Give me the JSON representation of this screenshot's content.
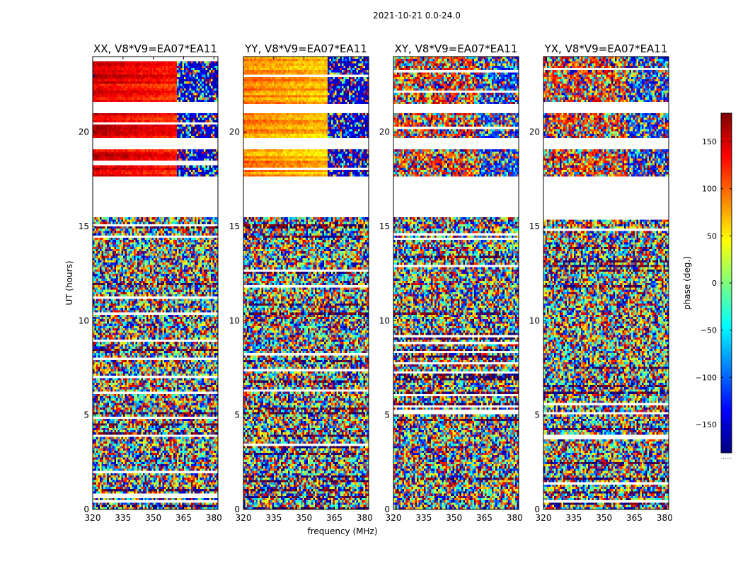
{
  "chart_data": {
    "type": "heatmap",
    "suptitle": "2021-10-21 0.0-24.0",
    "xlabel": "frequency (MHz)",
    "ylabel": "UT (hours)",
    "xlim": [
      320,
      382
    ],
    "ylim": [
      0,
      24
    ],
    "xticks": [
      320,
      335,
      350,
      365,
      380
    ],
    "yticks": [
      0,
      5,
      10,
      15,
      20
    ],
    "colorbar": {
      "label": "phase (deg.)",
      "range": [
        -180,
        180
      ],
      "ticks": [
        150,
        100,
        50,
        0,
        -50,
        -100,
        -150
      ],
      "tick_labels": [
        "150",
        "100",
        "50",
        "0",
        "−50",
        "−100",
        "−150"
      ],
      "colormap": "jet",
      "colors": [
        "#00007f",
        "#0000ff",
        "#007fff",
        "#00ffff",
        "#7fff7f",
        "#ffff00",
        "#ff7f00",
        "#ff0000",
        "#7f0000"
      ],
      "footer": "......"
    },
    "blank_ut_ranges": [
      [
        15.5,
        17.6
      ],
      [
        19.1,
        19.7
      ],
      [
        21.0,
        21.5
      ]
    ],
    "panels": [
      {
        "title": "XX, V8*V9=EA07*EA11",
        "coherent": true,
        "phase_mean": 150,
        "transition_mhz": 362
      },
      {
        "title": "YY, V8*V9=EA07*EA11",
        "coherent": true,
        "phase_mean": 90,
        "transition_mhz": 362
      },
      {
        "title": "XY, V8*V9=EA07*EA11",
        "coherent": false,
        "phase_mean": 0,
        "transition_mhz": 362
      },
      {
        "title": "YX, V8*V9=EA07*EA11",
        "coherent": false,
        "phase_mean": 0,
        "transition_mhz": 362
      }
    ]
  }
}
